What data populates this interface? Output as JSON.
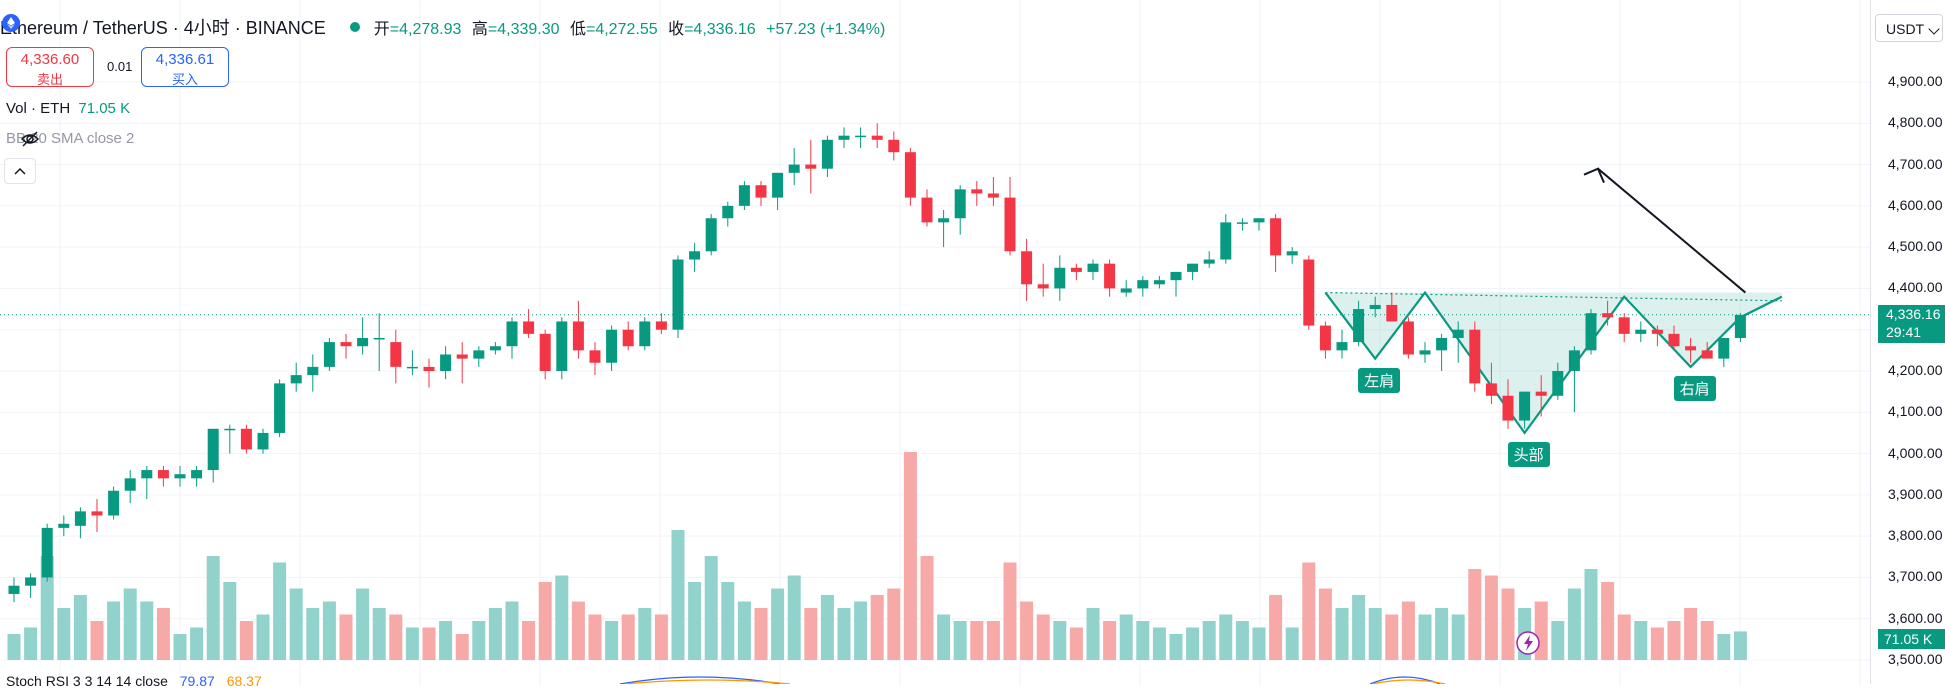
{
  "header": {
    "symbol_title": "Ethereum / TetherUS · 4小时 · BINANCE",
    "ohlc": {
      "open_label": "开",
      "open": "=4,278.93",
      "high_label": "高",
      "high": "=4,339.30",
      "low_label": "低",
      "low": "=4,272.55",
      "close_label": "收",
      "close": "=4,336.16",
      "change": "+57.23 (+1.34%)"
    }
  },
  "trade": {
    "sell_price": "4,336.60",
    "sell_label": "卖出",
    "spread": "0.01",
    "buy_price": "4,336.61",
    "buy_label": "买入"
  },
  "indicators": {
    "vol_label": "Vol · ETH",
    "vol_value": "71.05 K",
    "bb_label": "BB 20 SMA close 2",
    "stoch_label": "Stoch RSI 3 3 14 14 close",
    "stoch_k": "79.87",
    "stoch_d": "68.37"
  },
  "currency": "USDT",
  "price_tag": {
    "price": "4,336.16",
    "countdown": "29:41"
  },
  "volume_tag": "71.05 K",
  "pattern_labels": {
    "left_shoulder": "左肩",
    "head": "头部",
    "right_shoulder": "右肩"
  },
  "colors": {
    "up": "#089981",
    "down": "#f23645",
    "up_volume": "#92d2cc",
    "down_volume": "#f7a9a7"
  },
  "icons": [
    "ethereum-logo-icon",
    "eye-off-icon",
    "chevron-up-icon",
    "chevron-down-icon",
    "lightning-icon"
  ],
  "chart_data": {
    "type": "candlestick",
    "symbol": "ETHUSDT",
    "timeframe": "4小时",
    "ylim": [
      3500,
      4950
    ],
    "y_ticks": [
      "3,500.00",
      "3,600.00",
      "3,700.00",
      "3,800.00",
      "3,900.00",
      "4,000.00",
      "4,100.00",
      "4,200.00",
      "4,300.00",
      "4,400.00",
      "4,500.00",
      "4,600.00",
      "4,700.00",
      "4,800.00",
      "4,900.00"
    ],
    "y_tick_values": [
      3500,
      3600,
      3700,
      3800,
      3900,
      4000,
      4100,
      4200,
      4300,
      4400,
      4500,
      4600,
      4700,
      4800,
      4900
    ],
    "last_price": 4336.16,
    "neckline_level": 4390,
    "candles": [
      [
        3660,
        3700,
        3640,
        3680,
        0.2
      ],
      [
        3680,
        3710,
        3650,
        3700,
        0.25
      ],
      [
        3700,
        3830,
        3690,
        3820,
        0.8
      ],
      [
        3820,
        3850,
        3800,
        3830,
        0.4
      ],
      [
        3825,
        3870,
        3795,
        3860,
        0.5
      ],
      [
        3860,
        3890,
        3810,
        3850,
        0.3
      ],
      [
        3850,
        3920,
        3840,
        3910,
        0.45
      ],
      [
        3910,
        3960,
        3880,
        3940,
        0.55
      ],
      [
        3940,
        3970,
        3890,
        3960,
        0.45
      ],
      [
        3960,
        3970,
        3920,
        3940,
        0.4
      ],
      [
        3940,
        3970,
        3920,
        3950,
        0.2
      ],
      [
        3940,
        3970,
        3920,
        3960,
        0.25
      ],
      [
        3960,
        4060,
        3930,
        4060,
        0.8
      ],
      [
        4060,
        4070,
        4000,
        4060,
        0.6
      ],
      [
        4060,
        4070,
        4000,
        4010,
        0.3
      ],
      [
        4010,
        4060,
        4000,
        4050,
        0.35
      ],
      [
        4050,
        4180,
        4040,
        4170,
        0.75
      ],
      [
        4170,
        4220,
        4150,
        4190,
        0.55
      ],
      [
        4190,
        4240,
        4150,
        4210,
        0.4
      ],
      [
        4210,
        4280,
        4200,
        4270,
        0.45
      ],
      [
        4270,
        4290,
        4230,
        4260,
        0.35
      ],
      [
        4260,
        4330,
        4240,
        4280,
        0.55
      ],
      [
        4280,
        4340,
        4200,
        4280,
        0.4
      ],
      [
        4270,
        4300,
        4170,
        4210,
        0.35
      ],
      [
        4210,
        4250,
        4190,
        4210,
        0.25
      ],
      [
        4210,
        4230,
        4160,
        4200,
        0.25
      ],
      [
        4200,
        4260,
        4180,
        4240,
        0.3
      ],
      [
        4240,
        4270,
        4170,
        4230,
        0.2
      ],
      [
        4230,
        4260,
        4210,
        4250,
        0.3
      ],
      [
        4250,
        4270,
        4240,
        4260,
        0.4
      ],
      [
        4260,
        4330,
        4230,
        4320,
        0.45
      ],
      [
        4320,
        4350,
        4280,
        4290,
        0.3
      ],
      [
        4290,
        4300,
        4180,
        4200,
        0.6
      ],
      [
        4200,
        4330,
        4180,
        4320,
        0.65
      ],
      [
        4320,
        4370,
        4230,
        4250,
        0.45
      ],
      [
        4250,
        4270,
        4190,
        4220,
        0.35
      ],
      [
        4220,
        4310,
        4200,
        4300,
        0.3
      ],
      [
        4300,
        4320,
        4250,
        4260,
        0.35
      ],
      [
        4260,
        4330,
        4250,
        4320,
        0.4
      ],
      [
        4320,
        4340,
        4290,
        4300,
        0.35
      ],
      [
        4300,
        4480,
        4280,
        4470,
        1.0
      ],
      [
        4470,
        4510,
        4440,
        4490,
        0.6
      ],
      [
        4490,
        4580,
        4480,
        4570,
        0.8
      ],
      [
        4570,
        4610,
        4550,
        4600,
        0.6
      ],
      [
        4600,
        4660,
        4590,
        4650,
        0.45
      ],
      [
        4650,
        4660,
        4600,
        4620,
        0.4
      ],
      [
        4620,
        4680,
        4590,
        4680,
        0.55
      ],
      [
        4680,
        4740,
        4650,
        4700,
        0.65
      ],
      [
        4700,
        4760,
        4630,
        4690,
        0.4
      ],
      [
        4690,
        4770,
        4670,
        4760,
        0.5
      ],
      [
        4760,
        4790,
        4740,
        4770,
        0.4
      ],
      [
        4770,
        4790,
        4740,
        4770,
        0.45
      ],
      [
        4770,
        4800,
        4740,
        4760,
        0.5
      ],
      [
        4760,
        4780,
        4710,
        4730,
        0.55
      ],
      [
        4730,
        4740,
        4600,
        4620,
        1.6
      ],
      [
        4620,
        4640,
        4550,
        4560,
        0.8
      ],
      [
        4560,
        4590,
        4500,
        4570,
        0.35
      ],
      [
        4570,
        4650,
        4530,
        4640,
        0.3
      ],
      [
        4640,
        4660,
        4600,
        4630,
        0.3
      ],
      [
        4630,
        4670,
        4600,
        4620,
        0.3
      ],
      [
        4620,
        4670,
        4480,
        4490,
        0.75
      ],
      [
        4490,
        4520,
        4370,
        4410,
        0.45
      ],
      [
        4410,
        4460,
        4380,
        4400,
        0.35
      ],
      [
        4400,
        4480,
        4370,
        4450,
        0.3
      ],
      [
        4450,
        4460,
        4420,
        4440,
        0.25
      ],
      [
        4440,
        4470,
        4420,
        4460,
        0.4
      ],
      [
        4460,
        4470,
        4380,
        4400,
        0.3
      ],
      [
        4390,
        4420,
        4380,
        4400,
        0.35
      ],
      [
        4400,
        4430,
        4380,
        4420,
        0.3
      ],
      [
        4410,
        4430,
        4400,
        4420,
        0.25
      ],
      [
        4420,
        4440,
        4380,
        4440,
        0.2
      ],
      [
        4440,
        4450,
        4420,
        4460,
        0.25
      ],
      [
        4460,
        4490,
        4450,
        4470,
        0.3
      ],
      [
        4470,
        4580,
        4460,
        4560,
        0.35
      ],
      [
        4560,
        4570,
        4540,
        4560,
        0.3
      ],
      [
        4560,
        4570,
        4540,
        4570,
        0.25
      ],
      [
        4570,
        4580,
        4440,
        4480,
        0.5
      ],
      [
        4480,
        4500,
        4460,
        4490,
        0.25
      ],
      [
        4470,
        4480,
        4300,
        4310,
        0.75
      ],
      [
        4310,
        4320,
        4230,
        4250,
        0.55
      ],
      [
        4250,
        4300,
        4230,
        4270,
        0.4
      ],
      [
        4270,
        4370,
        4260,
        4350,
        0.5
      ],
      [
        4350,
        4380,
        4330,
        4360,
        0.4
      ],
      [
        4360,
        4390,
        4320,
        4320,
        0.35
      ],
      [
        4320,
        4330,
        4230,
        4240,
        0.45
      ],
      [
        4240,
        4270,
        4220,
        4250,
        0.35
      ],
      [
        4250,
        4290,
        4200,
        4280,
        0.4
      ],
      [
        4280,
        4320,
        4220,
        4300,
        0.35
      ],
      [
        4300,
        4320,
        4150,
        4170,
        0.7
      ],
      [
        4170,
        4220,
        4120,
        4140,
        0.65
      ],
      [
        4140,
        4180,
        4060,
        4080,
        0.55
      ],
      [
        4080,
        4150,
        4060,
        4150,
        0.4
      ],
      [
        4150,
        4190,
        4090,
        4140,
        0.45
      ],
      [
        4140,
        4220,
        4130,
        4200,
        0.3
      ],
      [
        4200,
        4260,
        4100,
        4250,
        0.55
      ],
      [
        4250,
        4350,
        4240,
        4340,
        0.7
      ],
      [
        4340,
        4370,
        4310,
        4330,
        0.6
      ],
      [
        4330,
        4340,
        4270,
        4290,
        0.35
      ],
      [
        4290,
        4320,
        4270,
        4300,
        0.3
      ],
      [
        4300,
        4310,
        4260,
        4290,
        0.25
      ],
      [
        4290,
        4310,
        4250,
        4260,
        0.3
      ],
      [
        4260,
        4280,
        4220,
        4250,
        0.4
      ],
      [
        4250,
        4270,
        4230,
        4230,
        0.3
      ],
      [
        4230,
        4280,
        4210,
        4280,
        0.2
      ],
      [
        4280,
        4340,
        4270,
        4336,
        0.22
      ]
    ],
    "patterns": [
      {
        "label": "左肩",
        "at_index": 82
      },
      {
        "label": "头部",
        "at_index": 91
      },
      {
        "label": "右肩",
        "at_index": 101
      }
    ],
    "projection": "up-arrow from neckline toward 4,700"
  }
}
